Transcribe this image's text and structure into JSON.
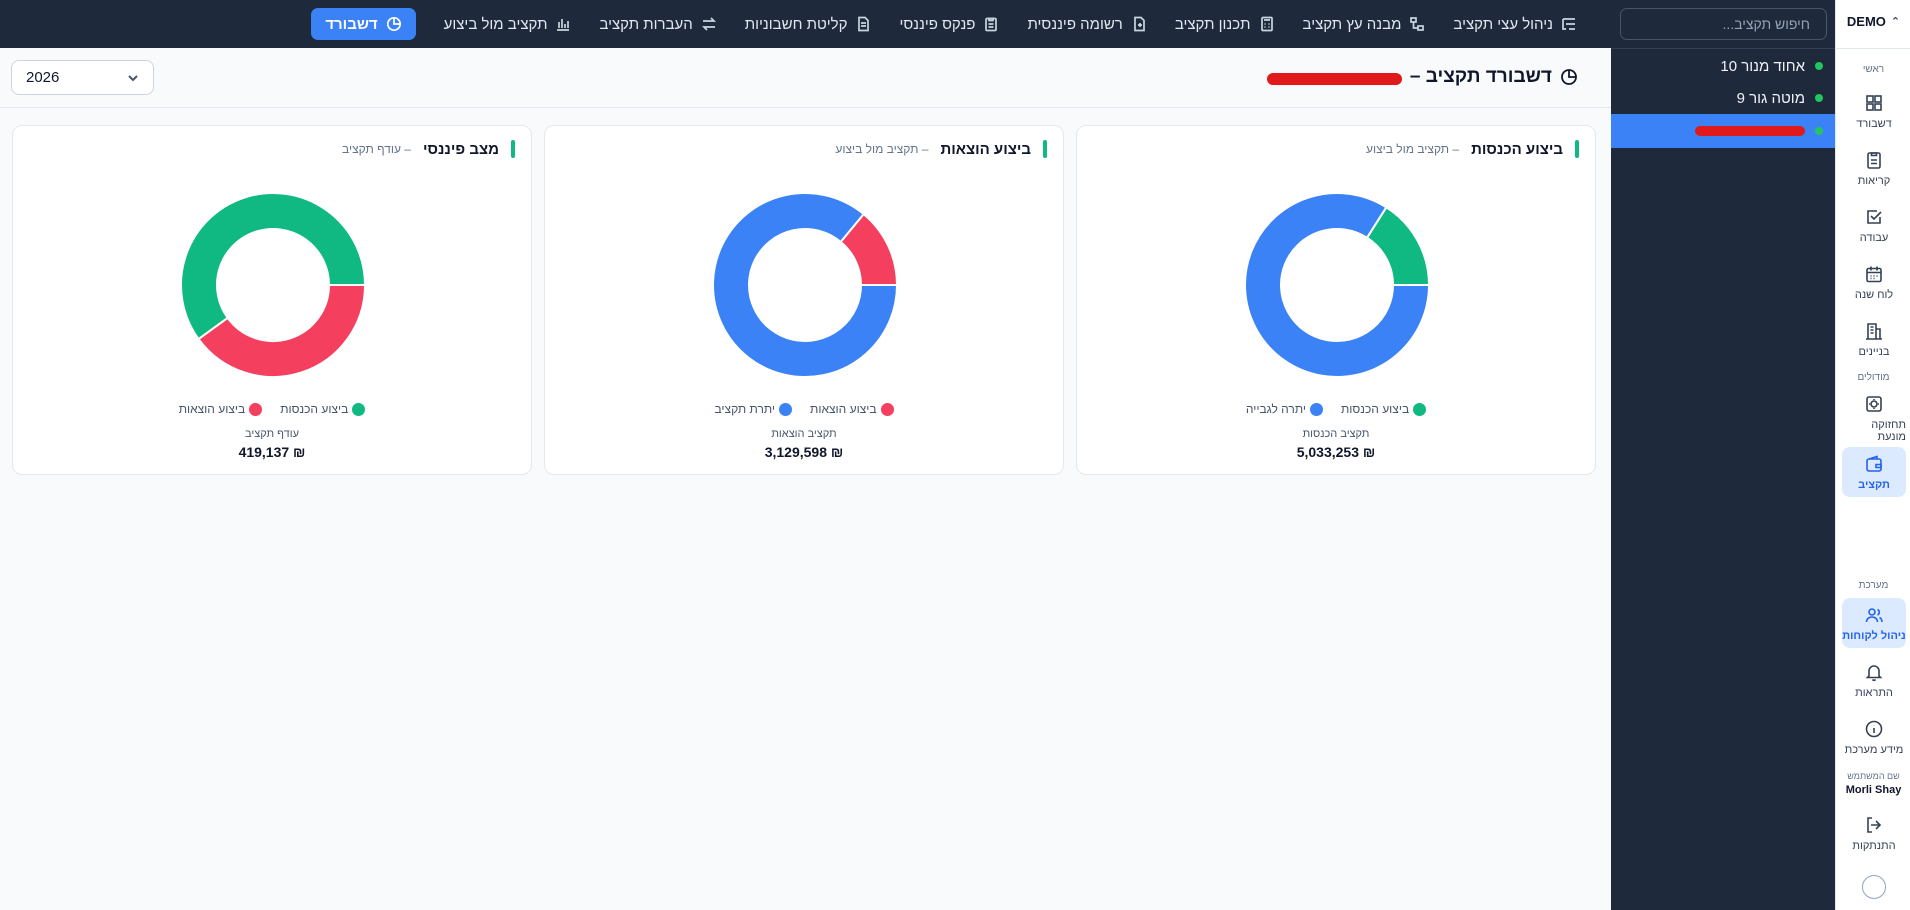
{
  "topnav": {
    "items": [
      {
        "label": "ניהול עצי תקציב",
        "icon": "tree-list-icon"
      },
      {
        "label": "מבנה עץ תקציב",
        "icon": "tree-structure-icon"
      },
      {
        "label": "תכנון תקציב",
        "icon": "calculator-icon"
      },
      {
        "label": "רשומה פיננסית",
        "icon": "file-plus-icon"
      },
      {
        "label": "פנקס פיננסי",
        "icon": "clipboard-icon"
      },
      {
        "label": "קליטת חשבוניות",
        "icon": "document-icon"
      },
      {
        "label": "העברות תקציב",
        "icon": "transfer-arrows-icon"
      },
      {
        "label": "תקציב מול ביצוע",
        "icon": "bar-chart-icon"
      }
    ],
    "active": {
      "label": "דשבורד",
      "icon": "pie-chart-icon"
    }
  },
  "buildings": {
    "search_placeholder": "חיפוש תקציב...",
    "items": [
      {
        "label": "אחוד מנור 10",
        "status_color": "#22c55e"
      },
      {
        "label": "מוטה גור 9",
        "status_color": "#22c55e"
      },
      {
        "label": "",
        "status_color": "#22c55e",
        "active": true
      }
    ]
  },
  "sidebar": {
    "brand": "DEMO",
    "sections": {
      "main": "ראשי",
      "modules": "מודולים",
      "system": "מערכת"
    },
    "items": [
      {
        "label": "דשבורד",
        "icon": "dashboard-grid-icon"
      },
      {
        "label": "קריאות",
        "icon": "clipboard-list-icon"
      },
      {
        "label": "עבודה",
        "icon": "check-square-icon"
      },
      {
        "label": "לוח שנה",
        "icon": "calendar-icon"
      },
      {
        "label": "בניינים",
        "icon": "building-icon"
      },
      {
        "label": "תחזוקה מונעת",
        "icon": "maintenance-icon"
      },
      {
        "label": "תקציב",
        "icon": "wallet-icon"
      },
      {
        "label": "ניהול לקוחות",
        "icon": "users-icon"
      },
      {
        "label": "התראות",
        "icon": "bell-icon"
      },
      {
        "label": "מידע מערכת",
        "icon": "info-icon"
      },
      {
        "label": "התנתקות",
        "icon": "logout-icon"
      }
    ],
    "user_label": "שם המשתמש",
    "user_name": "Morli Shay"
  },
  "page": {
    "title": "דשבורד תקציב –",
    "year": "2026"
  },
  "colors": {
    "blue": "#3b82f6",
    "green": "#10b981",
    "red": "#f43f5e"
  },
  "cards": [
    {
      "title": "ביצוע הכנסות",
      "subtitle": "– תקציב מול ביצוע",
      "legend": [
        {
          "label": "ביצוע הכנסות",
          "color": "#10b981"
        },
        {
          "label": "יתרה לגבייה",
          "color": "#3b82f6"
        }
      ],
      "total_label": "תקציב הכנסות",
      "total_value": "₪ 5,033,253"
    },
    {
      "title": "ביצוע הוצאות",
      "subtitle": "– תקציב מול ביצוע",
      "legend": [
        {
          "label": "ביצוע הוצאות",
          "color": "#f43f5e"
        },
        {
          "label": "יתרת תקציב",
          "color": "#3b82f6"
        }
      ],
      "total_label": "תקציב הוצאות",
      "total_value": "₪ 3,129,598"
    },
    {
      "title": "מצב פיננסי",
      "subtitle": "– עודף תקציב",
      "legend": [
        {
          "label": "ביצוע הכנסות",
          "color": "#10b981"
        },
        {
          "label": "ביצוע הוצאות",
          "color": "#f43f5e"
        }
      ],
      "total_label": "עודף תקציב",
      "total_value": "₪ 419,137"
    }
  ],
  "chart_data": [
    {
      "type": "pie",
      "title": "ביצוע הכנסות",
      "categories": [
        "ביצוע הכנסות",
        "יתרה לגבייה"
      ],
      "values": [
        16,
        84
      ],
      "colors": [
        "#10b981",
        "#3b82f6"
      ]
    },
    {
      "type": "pie",
      "title": "ביצוע הוצאות",
      "categories": [
        "ביצוע הוצאות",
        "יתרת תקציב"
      ],
      "values": [
        14,
        86
      ],
      "colors": [
        "#f43f5e",
        "#3b82f6"
      ]
    },
    {
      "type": "pie",
      "title": "מצב פיננסי",
      "categories": [
        "ביצוע הכנסות",
        "ביצוע הוצאות"
      ],
      "values": [
        60,
        40
      ],
      "colors": [
        "#10b981",
        "#f43f5e"
      ]
    }
  ]
}
